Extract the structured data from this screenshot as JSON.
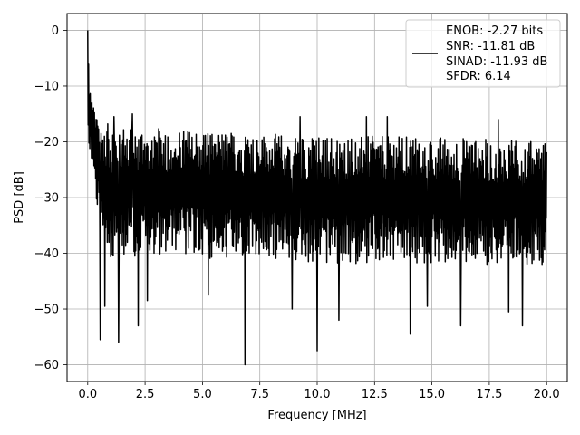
{
  "chart_data": {
    "type": "line",
    "title": "",
    "xlabel": "Frequency [MHz]",
    "ylabel": "PSD [dB]",
    "xlim": [
      -0.9,
      20.9
    ],
    "ylim": [
      -63,
      3
    ],
    "xticks": [
      0.0,
      2.5,
      5.0,
      7.5,
      10.0,
      12.5,
      15.0,
      17.5,
      20.0
    ],
    "xtick_labels": [
      "0.0",
      "2.5",
      "5.0",
      "7.5",
      "10.0",
      "12.5",
      "15.0",
      "17.5",
      "20.0"
    ],
    "yticks": [
      0,
      -10,
      -20,
      -30,
      -40,
      -50,
      -60
    ],
    "ytick_labels": [
      "0",
      "−10",
      "−20",
      "−30",
      "−40",
      "−50",
      "−60"
    ],
    "grid": true,
    "legend_position": "top-right",
    "legend_entries": [
      "ENOB: -2.27 bits",
      "SNR: -11.81 dB",
      "SINAD: -11.93 dB",
      "SFDR: 6.14"
    ],
    "series": [
      {
        "name": "ENOB: -2.27 bits",
        "color": "#000000",
        "x_range": [
          0.0,
          20.0
        ],
        "peak": {
          "x": 0.0,
          "y": 0.0
        },
        "envelope": [
          {
            "x": 0.0,
            "upper": 0.0,
            "lower": -23
          },
          {
            "x": 0.1,
            "upper": -10,
            "lower": -22
          },
          {
            "x": 0.2,
            "upper": -13,
            "lower": -25
          },
          {
            "x": 0.5,
            "upper": -16,
            "lower": -35
          },
          {
            "x": 1.0,
            "upper": -17,
            "lower": -42
          },
          {
            "x": 2.5,
            "upper": -17.5,
            "lower": -40
          },
          {
            "x": 5.0,
            "upper": -18,
            "lower": -41
          },
          {
            "x": 7.5,
            "upper": -18.5,
            "lower": -41
          },
          {
            "x": 10.0,
            "upper": -19,
            "lower": -42
          },
          {
            "x": 12.5,
            "upper": -19,
            "lower": -42
          },
          {
            "x": 15.0,
            "upper": -19,
            "lower": -42
          },
          {
            "x": 17.5,
            "upper": -19.5,
            "lower": -42
          },
          {
            "x": 20.0,
            "upper": -20,
            "lower": -42
          }
        ],
        "median": -28.5,
        "spikes_up": [
          {
            "x": 1.15,
            "y": -15.5
          },
          {
            "x": 1.95,
            "y": -15
          },
          {
            "x": 9.25,
            "y": -15.5
          },
          {
            "x": 12.15,
            "y": -15.5
          },
          {
            "x": 13.05,
            "y": -15.5
          },
          {
            "x": 17.9,
            "y": -16
          }
        ],
        "spikes_down": [
          {
            "x": 0.55,
            "y": -55.5
          },
          {
            "x": 0.75,
            "y": -49.5
          },
          {
            "x": 1.35,
            "y": -56
          },
          {
            "x": 2.2,
            "y": -53
          },
          {
            "x": 6.85,
            "y": -60
          },
          {
            "x": 8.9,
            "y": -50
          },
          {
            "x": 10.0,
            "y": -57.5
          },
          {
            "x": 10.95,
            "y": -52
          },
          {
            "x": 14.05,
            "y": -54.5
          },
          {
            "x": 16.25,
            "y": -53
          },
          {
            "x": 18.95,
            "y": -53
          },
          {
            "x": 18.35,
            "y": -50.5
          },
          {
            "x": 14.8,
            "y": -49.5
          },
          {
            "x": 5.25,
            "y": -47.5
          },
          {
            "x": 2.6,
            "y": -48.5
          }
        ]
      }
    ]
  }
}
